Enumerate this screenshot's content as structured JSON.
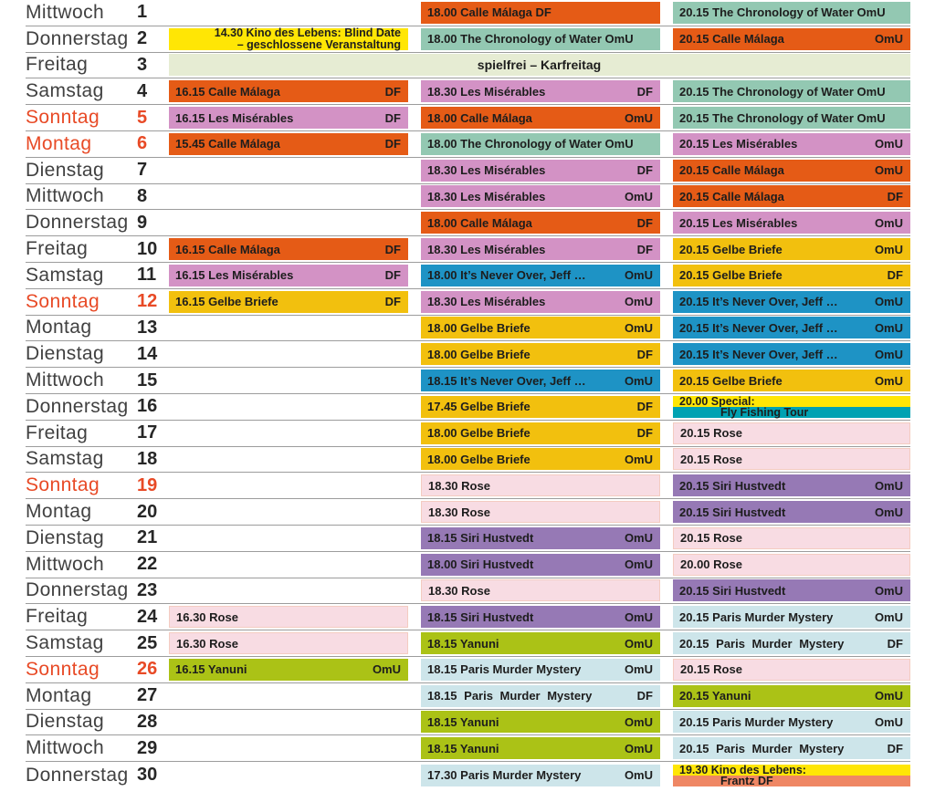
{
  "palette": {
    "orange": "#e55b16",
    "teal": "#93c8b2",
    "orchid": "#d392c5",
    "yellow": "#f2c00e",
    "blue": "#1e93c5",
    "rose": "#f8dce3",
    "purple": "#9679b5",
    "light_blue": "#cde5ea",
    "green": "#abc216",
    "bright_yellow": "#ffe605",
    "cyan": "#00a2b2",
    "salmon": "#ef8764",
    "pale_green": "#e6ecd3",
    "holiday_red": "#e84a26",
    "line_gray": "#9c9c9c",
    "text_dark": "#1d1d1d"
  },
  "language_tags": [
    "DF",
    "OmU"
  ],
  "rows": [
    {
      "day": "Mittwoch",
      "date": "1",
      "holiday": false,
      "slots": [
        null,
        {
          "type": "film",
          "time": "18.00",
          "title": "Calle Málaga",
          "tag": "DF",
          "tag_inline": true,
          "color": "orange"
        },
        {
          "type": "film",
          "time": "20.15",
          "title": "The Chronology of Water",
          "tag": "OmU",
          "tag_inline": true,
          "color": "teal"
        }
      ]
    },
    {
      "day": "Donnerstag",
      "date": "2",
      "holiday": false,
      "slots": [
        {
          "type": "note",
          "lines": [
            "14.30 Kino des Lebens: Blind Date",
            "– geschlossene Veranstaltung"
          ],
          "color": "bright_yellow"
        },
        {
          "type": "film",
          "time": "18.00",
          "title": "The Chronology of Water",
          "tag": "OmU",
          "tag_inline": true,
          "color": "teal"
        },
        {
          "type": "film",
          "time": "20.15",
          "title": "Calle Málaga",
          "tag": "OmU",
          "tag_inline": false,
          "color": "orange"
        }
      ]
    },
    {
      "day": "Freitag",
      "date": "3",
      "holiday": false,
      "slots": [
        {
          "type": "closed",
          "span": "all",
          "text": "spielfrei – Karfreitag",
          "color": "pale_green"
        }
      ]
    },
    {
      "day": "Samstag",
      "date": "4",
      "holiday": false,
      "slots": [
        {
          "type": "film",
          "time": "16.15",
          "title": "Calle Málaga",
          "tag": "DF",
          "tag_inline": false,
          "color": "orange"
        },
        {
          "type": "film",
          "time": "18.30",
          "title": "Les Misérables",
          "tag": "DF",
          "tag_inline": false,
          "color": "orchid"
        },
        {
          "type": "film",
          "time": "20.15",
          "title": "The Chronology of Water",
          "tag": "OmU",
          "tag_inline": true,
          "color": "teal"
        }
      ]
    },
    {
      "day": "Sonntag",
      "date": "5",
      "holiday": true,
      "slots": [
        {
          "type": "film",
          "time": "16.15",
          "title": "Les Misérables",
          "tag": "DF",
          "tag_inline": false,
          "color": "orchid"
        },
        {
          "type": "film",
          "time": "18.00",
          "title": "Calle Málaga",
          "tag": "OmU",
          "tag_inline": false,
          "color": "orange"
        },
        {
          "type": "film",
          "time": "20.15",
          "title": "The Chronology of Water",
          "tag": "OmU",
          "tag_inline": true,
          "color": "teal"
        }
      ]
    },
    {
      "day": "Montag",
      "date": "6",
      "holiday": true,
      "slots": [
        {
          "type": "film",
          "time": "15.45",
          "title": "Calle Málaga",
          "tag": "DF",
          "tag_inline": false,
          "color": "orange"
        },
        {
          "type": "film",
          "time": "18.00",
          "title": "The Chronology of Water",
          "tag": "OmU",
          "tag_inline": true,
          "color": "teal"
        },
        {
          "type": "film",
          "time": "20.15",
          "title": "Les Misérables",
          "tag": "OmU",
          "tag_inline": false,
          "color": "orchid"
        }
      ]
    },
    {
      "day": "Dienstag",
      "date": "7",
      "holiday": false,
      "slots": [
        null,
        {
          "type": "film",
          "time": "18.30",
          "title": "Les Misérables",
          "tag": "DF",
          "tag_inline": false,
          "color": "orchid"
        },
        {
          "type": "film",
          "time": "20.15",
          "title": "Calle Málaga",
          "tag": "OmU",
          "tag_inline": false,
          "color": "orange"
        }
      ]
    },
    {
      "day": "Mittwoch",
      "date": "8",
      "holiday": false,
      "slots": [
        null,
        {
          "type": "film",
          "time": "18.30",
          "title": "Les Misérables",
          "tag": "OmU",
          "tag_inline": false,
          "color": "orchid"
        },
        {
          "type": "film",
          "time": "20.15",
          "title": "Calle Málaga",
          "tag": "DF",
          "tag_inline": false,
          "color": "orange"
        }
      ]
    },
    {
      "day": "Donnerstag",
      "date": "9",
      "holiday": false,
      "slots": [
        null,
        {
          "type": "film",
          "time": "18.00",
          "title": "Calle Málaga",
          "tag": "DF",
          "tag_inline": false,
          "color": "orange"
        },
        {
          "type": "film",
          "time": "20.15",
          "title": "Les Misérables",
          "tag": "OmU",
          "tag_inline": false,
          "color": "orchid"
        }
      ]
    },
    {
      "day": "Freitag",
      "date": "10",
      "holiday": false,
      "slots": [
        {
          "type": "film",
          "time": "16.15",
          "title": "Calle Málaga",
          "tag": "DF",
          "tag_inline": false,
          "color": "orange"
        },
        {
          "type": "film",
          "time": "18.30",
          "title": "Les Misérables",
          "tag": "DF",
          "tag_inline": false,
          "color": "orchid"
        },
        {
          "type": "film",
          "time": "20.15",
          "title": "Gelbe Briefe",
          "tag": "OmU",
          "tag_inline": false,
          "color": "yellow"
        }
      ]
    },
    {
      "day": "Samstag",
      "date": "11",
      "holiday": false,
      "slots": [
        {
          "type": "film",
          "time": "16.15",
          "title": "Les Misérables",
          "tag": "DF",
          "tag_inline": false,
          "color": "orchid"
        },
        {
          "type": "film",
          "time": "18.00",
          "title": "It’s Never Over, Jeff …",
          "tag": "OmU",
          "tag_inline": false,
          "color": "blue"
        },
        {
          "type": "film",
          "time": "20.15",
          "title": "Gelbe Briefe",
          "tag": "DF",
          "tag_inline": false,
          "color": "yellow"
        }
      ]
    },
    {
      "day": "Sonntag",
      "date": "12",
      "holiday": true,
      "slots": [
        {
          "type": "film",
          "time": "16.15",
          "title": "Gelbe Briefe",
          "tag": "DF",
          "tag_inline": false,
          "color": "yellow"
        },
        {
          "type": "film",
          "time": "18.30",
          "title": "Les Misérables",
          "tag": "OmU",
          "tag_inline": false,
          "color": "orchid"
        },
        {
          "type": "film",
          "time": "20.15",
          "title": "It’s Never Over, Jeff …",
          "tag": "OmU",
          "tag_inline": false,
          "color": "blue"
        }
      ]
    },
    {
      "day": "Montag",
      "date": "13",
      "holiday": false,
      "slots": [
        null,
        {
          "type": "film",
          "time": "18.00",
          "title": "Gelbe Briefe",
          "tag": "OmU",
          "tag_inline": false,
          "color": "yellow"
        },
        {
          "type": "film",
          "time": "20.15",
          "title": "It’s Never Over, Jeff …",
          "tag": "OmU",
          "tag_inline": false,
          "color": "blue"
        }
      ]
    },
    {
      "day": "Dienstag",
      "date": "14",
      "holiday": false,
      "slots": [
        null,
        {
          "type": "film",
          "time": "18.00",
          "title": "Gelbe Briefe",
          "tag": "DF",
          "tag_inline": false,
          "color": "yellow"
        },
        {
          "type": "film",
          "time": "20.15",
          "title": "It’s Never Over, Jeff …",
          "tag": "OmU",
          "tag_inline": false,
          "color": "blue"
        }
      ]
    },
    {
      "day": "Mittwoch",
      "date": "15",
      "holiday": false,
      "slots": [
        null,
        {
          "type": "film",
          "time": "18.15",
          "title": "It’s Never Over, Jeff …",
          "tag": "OmU",
          "tag_inline": false,
          "color": "blue"
        },
        {
          "type": "film",
          "time": "20.15",
          "title": "Gelbe Briefe",
          "tag": "OmU",
          "tag_inline": false,
          "color": "yellow"
        }
      ]
    },
    {
      "day": "Donnerstag",
      "date": "16",
      "holiday": false,
      "slots": [
        null,
        {
          "type": "film",
          "time": "17.45",
          "title": "Gelbe Briefe",
          "tag": "DF",
          "tag_inline": false,
          "color": "yellow"
        },
        {
          "type": "special",
          "line1": "20.00 Special:",
          "line2": "Fly Fishing Tour",
          "top_color": "bright_yellow",
          "bottom_color": "cyan"
        }
      ]
    },
    {
      "day": "Freitag",
      "date": "17",
      "holiday": false,
      "slots": [
        null,
        {
          "type": "film",
          "time": "18.00",
          "title": "Gelbe Briefe",
          "tag": "DF",
          "tag_inline": false,
          "color": "yellow"
        },
        {
          "type": "film",
          "time": "20.15",
          "title": "Rose",
          "tag": "",
          "tag_inline": false,
          "color": "rose"
        }
      ]
    },
    {
      "day": "Samstag",
      "date": "18",
      "holiday": false,
      "slots": [
        null,
        {
          "type": "film",
          "time": "18.00",
          "title": "Gelbe Briefe",
          "tag": "OmU",
          "tag_inline": false,
          "color": "yellow"
        },
        {
          "type": "film",
          "time": "20.15",
          "title": "Rose",
          "tag": "",
          "tag_inline": false,
          "color": "rose"
        }
      ]
    },
    {
      "day": "Sonntag",
      "date": "19",
      "holiday": true,
      "slots": [
        null,
        {
          "type": "film",
          "time": "18.30",
          "title": "Rose",
          "tag": "",
          "tag_inline": false,
          "color": "rose"
        },
        {
          "type": "film",
          "time": "20.15",
          "title": "Siri Hustvedt",
          "tag": "OmU",
          "tag_inline": false,
          "color": "purple"
        }
      ]
    },
    {
      "day": "Montag",
      "date": "20",
      "holiday": false,
      "slots": [
        null,
        {
          "type": "film",
          "time": "18.30",
          "title": "Rose",
          "tag": "",
          "tag_inline": false,
          "color": "rose"
        },
        {
          "type": "film",
          "time": "20.15",
          "title": "Siri Hustvedt",
          "tag": "OmU",
          "tag_inline": false,
          "color": "purple"
        }
      ]
    },
    {
      "day": "Dienstag",
      "date": "21",
      "holiday": false,
      "slots": [
        null,
        {
          "type": "film",
          "time": "18.15",
          "title": "Siri Hustvedt",
          "tag": "OmU",
          "tag_inline": false,
          "color": "purple"
        },
        {
          "type": "film",
          "time": "20.15",
          "title": "Rose",
          "tag": "",
          "tag_inline": false,
          "color": "rose"
        }
      ]
    },
    {
      "day": "Mittwoch",
      "date": "22",
      "holiday": false,
      "slots": [
        null,
        {
          "type": "film",
          "time": "18.00",
          "title": "Siri Hustvedt",
          "tag": "OmU",
          "tag_inline": false,
          "color": "purple"
        },
        {
          "type": "film",
          "time": "20.00",
          "title": "Rose",
          "tag": "",
          "tag_inline": false,
          "color": "rose"
        }
      ]
    },
    {
      "day": "Donnerstag",
      "date": "23",
      "holiday": false,
      "slots": [
        null,
        {
          "type": "film",
          "time": "18.30",
          "title": "Rose",
          "tag": "",
          "tag_inline": false,
          "color": "rose"
        },
        {
          "type": "film",
          "time": "20.15",
          "title": "Siri Hustvedt",
          "tag": "OmU",
          "tag_inline": false,
          "color": "purple"
        }
      ]
    },
    {
      "day": "Freitag",
      "date": "24",
      "holiday": false,
      "slots": [
        {
          "type": "film",
          "time": "16.30",
          "title": "Rose",
          "tag": "",
          "tag_inline": false,
          "color": "rose"
        },
        {
          "type": "film",
          "time": "18.15",
          "title": "Siri Hustvedt",
          "tag": "OmU",
          "tag_inline": false,
          "color": "purple"
        },
        {
          "type": "film",
          "time": "20.15",
          "title": "Paris Murder Mystery",
          "tag": "OmU",
          "tag_inline": false,
          "color": "light_blue"
        }
      ]
    },
    {
      "day": "Samstag",
      "date": "25",
      "holiday": false,
      "slots": [
        {
          "type": "film",
          "time": "16.30",
          "title": "Rose",
          "tag": "",
          "tag_inline": false,
          "color": "rose"
        },
        {
          "type": "film",
          "time": "18.15",
          "title": "Yanuni",
          "tag": "OmU",
          "tag_inline": false,
          "color": "green"
        },
        {
          "type": "film",
          "time": "20.15",
          "title": "Paris Murder Mystery",
          "tag": "DF",
          "tag_inline": false,
          "color": "light_blue",
          "spread": true
        }
      ]
    },
    {
      "day": "Sonntag",
      "date": "26",
      "holiday": true,
      "slots": [
        {
          "type": "film",
          "time": "16.15",
          "title": "Yanuni",
          "tag": "OmU",
          "tag_inline": false,
          "color": "green"
        },
        {
          "type": "film",
          "time": "18.15",
          "title": "Paris Murder Mystery",
          "tag": "OmU",
          "tag_inline": false,
          "color": "light_blue"
        },
        {
          "type": "film",
          "time": "20.15",
          "title": "Rose",
          "tag": "",
          "tag_inline": false,
          "color": "rose"
        }
      ]
    },
    {
      "day": "Montag",
      "date": "27",
      "holiday": false,
      "slots": [
        null,
        {
          "type": "film",
          "time": "18.15",
          "title": "Paris Murder Mystery",
          "tag": "DF",
          "tag_inline": false,
          "color": "light_blue",
          "spread": true
        },
        {
          "type": "film",
          "time": "20.15",
          "title": "Yanuni",
          "tag": "OmU",
          "tag_inline": false,
          "color": "green"
        }
      ]
    },
    {
      "day": "Dienstag",
      "date": "28",
      "holiday": false,
      "slots": [
        null,
        {
          "type": "film",
          "time": "18.15",
          "title": "Yanuni",
          "tag": "OmU",
          "tag_inline": false,
          "color": "green"
        },
        {
          "type": "film",
          "time": "20.15",
          "title": "Paris Murder Mystery",
          "tag": "OmU",
          "tag_inline": false,
          "color": "light_blue"
        }
      ]
    },
    {
      "day": "Mittwoch",
      "date": "29",
      "holiday": false,
      "slots": [
        null,
        {
          "type": "film",
          "time": "18.15",
          "title": "Yanuni",
          "tag": "OmU",
          "tag_inline": false,
          "color": "green"
        },
        {
          "type": "film",
          "time": "20.15",
          "title": "Paris Murder Mystery",
          "tag": "DF",
          "tag_inline": false,
          "color": "light_blue",
          "spread": true
        }
      ]
    },
    {
      "day": "Donnerstag",
      "date": "30",
      "holiday": false,
      "slots": [
        null,
        {
          "type": "film",
          "time": "17.30",
          "title": "Paris Murder Mystery",
          "tag": "OmU",
          "tag_inline": false,
          "color": "light_blue"
        },
        {
          "type": "special",
          "line1": "19.30 Kino des Lebens:",
          "line2": "Frantz DF",
          "top_color": "bright_yellow",
          "bottom_color": "salmon"
        }
      ]
    }
  ]
}
